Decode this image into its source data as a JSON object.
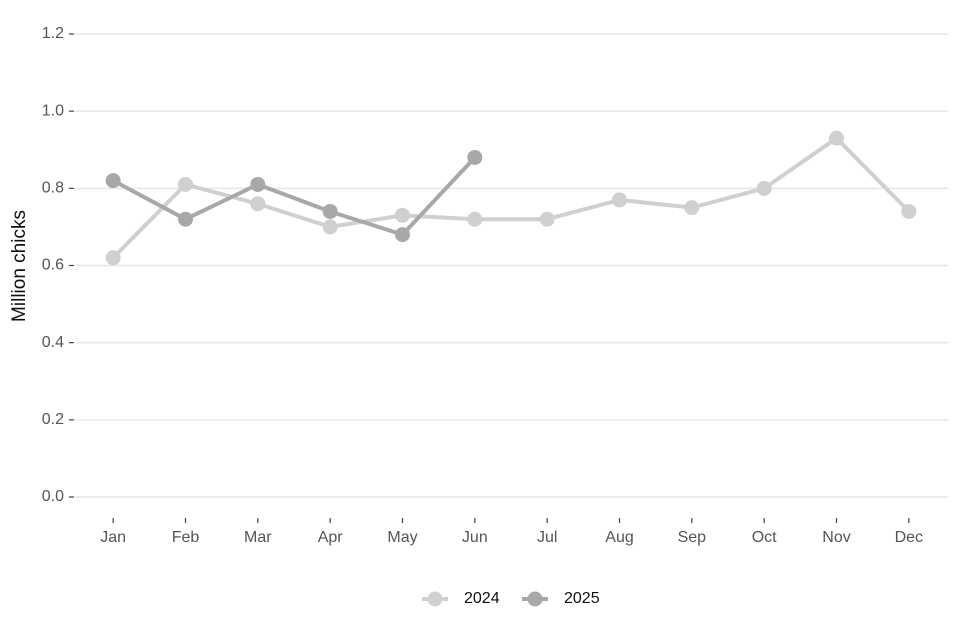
{
  "chart_data": {
    "type": "line",
    "y_label": "Million chicks",
    "categories": [
      "Jan",
      "Feb",
      "Mar",
      "Apr",
      "May",
      "Jun",
      "Jul",
      "Aug",
      "Sep",
      "Oct",
      "Nov",
      "Dec"
    ],
    "series": [
      {
        "name": "2024",
        "color": "#d0d0d0",
        "values": [
          0.62,
          0.81,
          0.76,
          0.7,
          0.73,
          0.72,
          0.72,
          0.77,
          0.75,
          0.8,
          0.93,
          0.74
        ]
      },
      {
        "name": "2025",
        "color": "#a9a7a9",
        "values": [
          0.82,
          0.72,
          0.81,
          0.74,
          0.68,
          0.88,
          null,
          null,
          null,
          null,
          null,
          null
        ]
      }
    ],
    "ylim": [
      0,
      1.2
    ],
    "yticks": [
      {
        "value": 0,
        "label": "0.0"
      },
      0.2,
      0.4,
      0.6,
      0.8,
      {
        "value": 1,
        "label": "1.0"
      },
      1.2
    ],
    "grid": true,
    "legend": "bottom"
  }
}
